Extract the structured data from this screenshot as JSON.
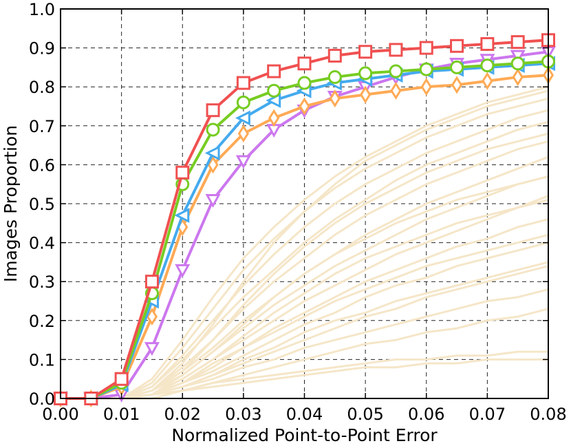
{
  "chart_data": {
    "type": "line",
    "title": "",
    "xlabel": "Normalized Point-to-Point Error",
    "ylabel": "Images Proportion",
    "xlim": [
      0,
      0.08
    ],
    "ylim": [
      0,
      1.0
    ],
    "xticks": [
      "0.00",
      "0.01",
      "0.02",
      "0.03",
      "0.04",
      "0.05",
      "0.06",
      "0.07",
      "0.08"
    ],
    "yticks": [
      "0.0",
      "0.1",
      "0.2",
      "0.3",
      "0.4",
      "0.5",
      "0.6",
      "0.7",
      "0.8",
      "0.9",
      "1.0"
    ],
    "grid": true,
    "legend": "none",
    "x": [
      0,
      0.005,
      0.01,
      0.015,
      0.02,
      0.025,
      0.03,
      0.035,
      0.04,
      0.045,
      0.05,
      0.055,
      0.06,
      0.065,
      0.07,
      0.075,
      0.08
    ],
    "background_series_color": "#f5e6c8",
    "background_series": [
      [
        0,
        0,
        0,
        0.05,
        0.15,
        0.26,
        0.36,
        0.44,
        0.51,
        0.57,
        0.62,
        0.66,
        0.7,
        0.73,
        0.76,
        0.78,
        0.8
      ],
      [
        0,
        0,
        0,
        0.04,
        0.13,
        0.23,
        0.33,
        0.41,
        0.48,
        0.54,
        0.59,
        0.63,
        0.67,
        0.7,
        0.73,
        0.75,
        0.77
      ],
      [
        0,
        0,
        0,
        0.03,
        0.11,
        0.2,
        0.29,
        0.37,
        0.44,
        0.5,
        0.55,
        0.59,
        0.63,
        0.66,
        0.69,
        0.72,
        0.74
      ],
      [
        0,
        0,
        0,
        0.03,
        0.1,
        0.18,
        0.26,
        0.33,
        0.4,
        0.46,
        0.51,
        0.56,
        0.6,
        0.63,
        0.66,
        0.69,
        0.71
      ],
      [
        0,
        0,
        0,
        0.02,
        0.08,
        0.15,
        0.23,
        0.3,
        0.36,
        0.42,
        0.47,
        0.51,
        0.55,
        0.58,
        0.61,
        0.64,
        0.66
      ],
      [
        0,
        0,
        0,
        0.02,
        0.07,
        0.13,
        0.2,
        0.26,
        0.32,
        0.37,
        0.42,
        0.46,
        0.5,
        0.53,
        0.56,
        0.59,
        0.62
      ],
      [
        0,
        0,
        0,
        0.02,
        0.06,
        0.12,
        0.18,
        0.24,
        0.29,
        0.34,
        0.38,
        0.42,
        0.46,
        0.49,
        0.52,
        0.55,
        0.57
      ],
      [
        0,
        0,
        0,
        0.01,
        0.05,
        0.1,
        0.15,
        0.2,
        0.25,
        0.29,
        0.33,
        0.37,
        0.4,
        0.43,
        0.46,
        0.49,
        0.52
      ],
      [
        0,
        0,
        0,
        0.01,
        0.04,
        0.09,
        0.13,
        0.18,
        0.22,
        0.26,
        0.3,
        0.33,
        0.36,
        0.39,
        0.41,
        0.44,
        0.46
      ],
      [
        0,
        0,
        0,
        0.01,
        0.04,
        0.07,
        0.11,
        0.15,
        0.19,
        0.22,
        0.26,
        0.29,
        0.31,
        0.34,
        0.36,
        0.38,
        0.4
      ],
      [
        0,
        0,
        0,
        0.01,
        0.03,
        0.06,
        0.09,
        0.12,
        0.15,
        0.18,
        0.21,
        0.23,
        0.26,
        0.28,
        0.3,
        0.32,
        0.34
      ],
      [
        0,
        0,
        0,
        0.01,
        0.03,
        0.05,
        0.08,
        0.1,
        0.13,
        0.15,
        0.17,
        0.19,
        0.21,
        0.23,
        0.25,
        0.26,
        0.28
      ],
      [
        0,
        0,
        0,
        0.01,
        0.02,
        0.04,
        0.06,
        0.08,
        0.1,
        0.12,
        0.14,
        0.15,
        0.17,
        0.18,
        0.2,
        0.21,
        0.23
      ],
      [
        0,
        0,
        0,
        0.01,
        0.02,
        0.04,
        0.05,
        0.06,
        0.07,
        0.08,
        0.09,
        0.1,
        0.1,
        0.11,
        0.11,
        0.12,
        0.12
      ],
      [
        0,
        0,
        0,
        0,
        0.02,
        0.03,
        0.04,
        0.05,
        0.06,
        0.07,
        0.08,
        0.08,
        0.09,
        0.09,
        0.1,
        0.1,
        0.1
      ],
      [
        0,
        0,
        0,
        0.02,
        0.09,
        0.19,
        0.3,
        0.4,
        0.48,
        0.55,
        0.61,
        0.65,
        0.69,
        0.72,
        0.75,
        0.77,
        0.79
      ],
      [
        0,
        0,
        0,
        0.02,
        0.07,
        0.15,
        0.24,
        0.32,
        0.39,
        0.45,
        0.5,
        0.54,
        0.58,
        0.61,
        0.64,
        0.66,
        0.68
      ],
      [
        0,
        0,
        0,
        0.01,
        0.06,
        0.12,
        0.19,
        0.26,
        0.32,
        0.37,
        0.41,
        0.45,
        0.48,
        0.51,
        0.53,
        0.55,
        0.57
      ],
      [
        0,
        0,
        0,
        0.01,
        0.05,
        0.1,
        0.16,
        0.22,
        0.27,
        0.32,
        0.36,
        0.39,
        0.42,
        0.45,
        0.47,
        0.49,
        0.51
      ],
      [
        0,
        0,
        0,
        0.01,
        0.04,
        0.08,
        0.13,
        0.17,
        0.21,
        0.25,
        0.28,
        0.31,
        0.34,
        0.36,
        0.38,
        0.4,
        0.42
      ],
      [
        0,
        0,
        0,
        0.01,
        0.03,
        0.06,
        0.1,
        0.13,
        0.17,
        0.2,
        0.22,
        0.25,
        0.27,
        0.29,
        0.31,
        0.33,
        0.35
      ]
    ],
    "series": [
      {
        "color": "#f05050",
        "marker": "square",
        "values": [
          0,
          0,
          0.05,
          0.3,
          0.58,
          0.74,
          0.81,
          0.84,
          0.86,
          0.88,
          0.89,
          0.895,
          0.9,
          0.905,
          0.91,
          0.915,
          0.92
        ]
      },
      {
        "color": "#77cc22",
        "marker": "circle",
        "values": [
          0,
          0,
          0.04,
          0.27,
          0.55,
          0.69,
          0.76,
          0.79,
          0.81,
          0.825,
          0.835,
          0.84,
          0.845,
          0.85,
          0.855,
          0.86,
          0.865
        ]
      },
      {
        "color": "#44aaee",
        "marker": "triangle-left",
        "values": [
          0,
          0,
          0.035,
          0.25,
          0.47,
          0.63,
          0.72,
          0.765,
          0.79,
          0.81,
          0.82,
          0.83,
          0.84,
          0.845,
          0.85,
          0.855,
          0.86
        ]
      },
      {
        "color": "#ffaa55",
        "marker": "diamond",
        "values": [
          0,
          0,
          0.03,
          0.21,
          0.44,
          0.6,
          0.68,
          0.72,
          0.75,
          0.77,
          0.78,
          0.79,
          0.8,
          0.805,
          0.815,
          0.825,
          0.83
        ]
      },
      {
        "color": "#cc77ee",
        "marker": "triangle-down",
        "values": [
          0,
          0,
          0.01,
          0.13,
          0.33,
          0.51,
          0.61,
          0.69,
          0.74,
          0.775,
          0.8,
          0.825,
          0.845,
          0.86,
          0.87,
          0.88,
          0.89
        ]
      }
    ]
  }
}
